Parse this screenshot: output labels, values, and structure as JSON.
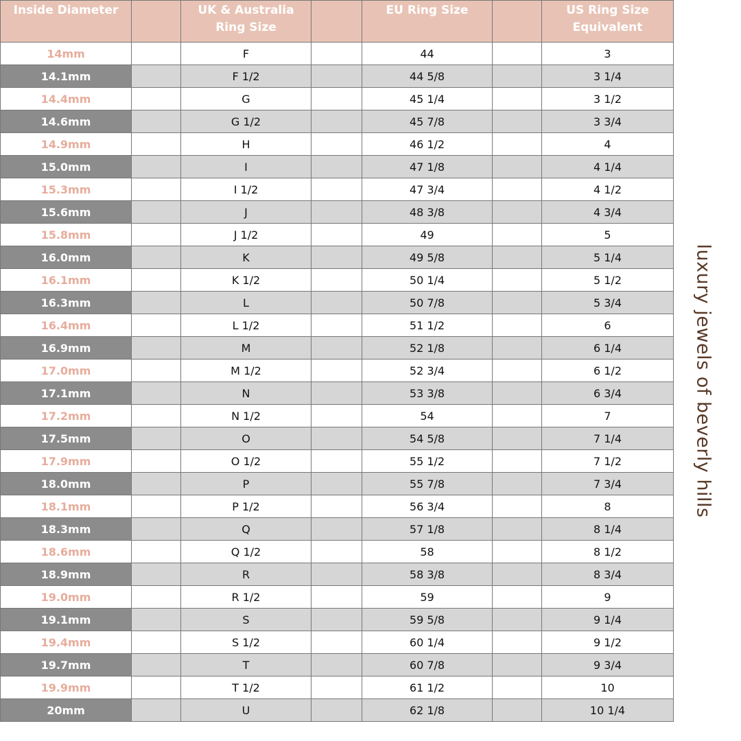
{
  "table": {
    "header": [
      "Inside Diameter",
      "UK & Australia Ring Size",
      "EU Ring Size",
      "US Ring Size Equivalent"
    ],
    "rows": [
      [
        "14mm",
        "F",
        "44",
        "3"
      ],
      [
        "14.1mm",
        "F 1/2",
        "44 5/8",
        "3 1/4"
      ],
      [
        "14.4mm",
        "G",
        "45 1/4",
        "3 1/2"
      ],
      [
        "14.6mm",
        "G 1/2",
        "45 7/8",
        "3 3/4"
      ],
      [
        "14.9mm",
        "H",
        "46 1/2",
        "4"
      ],
      [
        "15.0mm",
        "I",
        "47 1/8",
        "4 1/4"
      ],
      [
        "15.3mm",
        "I 1/2",
        "47 3/4",
        "4 1/2"
      ],
      [
        "15.6mm",
        "J",
        "48 3/8",
        "4 3/4"
      ],
      [
        "15.8mm",
        "J 1/2",
        "49",
        "5"
      ],
      [
        "16.0mm",
        "K",
        "49 5/8",
        "5 1/4"
      ],
      [
        "16.1mm",
        "K 1/2",
        "50 1/4",
        "5 1/2"
      ],
      [
        "16.3mm",
        "L",
        "50 7/8",
        "5 3/4"
      ],
      [
        "16.4mm",
        "L 1/2",
        "51 1/2",
        "6"
      ],
      [
        "16.9mm",
        "M",
        "52 1/8",
        "6 1/4"
      ],
      [
        "17.0mm",
        "M 1/2",
        "52 3/4",
        "6 1/2"
      ],
      [
        "17.1mm",
        "N",
        "53 3/8",
        "6 3/4"
      ],
      [
        "17.2mm",
        "N 1/2",
        "54",
        "7"
      ],
      [
        "17.5mm",
        "O",
        "54 5/8",
        "7 1/4"
      ],
      [
        "17.9mm",
        "O 1/2",
        "55 1/2",
        "7 1/2"
      ],
      [
        "18.0mm",
        "P",
        "55 7/8",
        "7 3/4"
      ],
      [
        "18.1mm",
        "P 1/2",
        "56 3/4",
        "8"
      ],
      [
        "18.3mm",
        "Q",
        "57 1/8",
        "8 1/4"
      ],
      [
        "18.6mm",
        "Q 1/2",
        "58",
        "8 1/2"
      ],
      [
        "18.9mm",
        "R",
        "58 3/8",
        "8 3/4"
      ],
      [
        "19.0mm",
        "R 1/2",
        "59",
        "9"
      ],
      [
        "19.1mm",
        "S",
        "59 5/8",
        "9 1/4"
      ],
      [
        "19.4mm",
        "S 1/2",
        "60 1/4",
        "9 1/2"
      ],
      [
        "19.7mm",
        "T",
        "60 7/8",
        "9 3/4"
      ],
      [
        "19.9mm",
        "T 1/2",
        "61 1/2",
        "10"
      ],
      [
        "20mm",
        "U",
        "62 1/8",
        "10 1/4"
      ]
    ]
  },
  "side_text": "luxury jewels of beverly hills"
}
